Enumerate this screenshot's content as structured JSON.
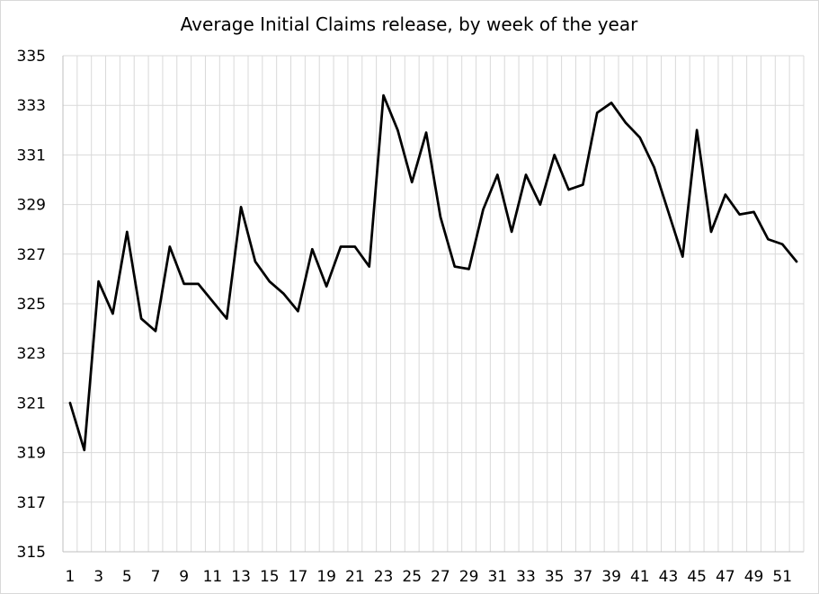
{
  "chart_data": {
    "type": "line",
    "title": "Average Initial Claims release, by week of the year",
    "xlabel": "",
    "ylabel": "",
    "ylim": [
      315,
      335
    ],
    "yticks": [
      315,
      317,
      319,
      321,
      323,
      325,
      327,
      329,
      331,
      333,
      335
    ],
    "x": [
      1,
      2,
      3,
      4,
      5,
      6,
      7,
      8,
      9,
      10,
      11,
      12,
      13,
      14,
      15,
      16,
      17,
      18,
      19,
      20,
      21,
      22,
      23,
      24,
      25,
      26,
      27,
      28,
      29,
      30,
      31,
      32,
      33,
      34,
      35,
      36,
      37,
      38,
      39,
      40,
      41,
      42,
      43,
      44,
      45,
      46,
      47,
      48,
      49,
      50,
      51,
      52
    ],
    "xtick_labels": [
      "1",
      "3",
      "5",
      "7",
      "9",
      "11",
      "13",
      "15",
      "17",
      "19",
      "21",
      "23",
      "25",
      "27",
      "29",
      "31",
      "33",
      "35",
      "37",
      "39",
      "41",
      "43",
      "45",
      "47",
      "49",
      "51"
    ],
    "grid": true,
    "legend": "none",
    "line_color": "#000000",
    "series": [
      {
        "values": [
          321.0,
          319.1,
          325.9,
          324.6,
          327.9,
          324.4,
          323.9,
          327.3,
          325.8,
          325.8,
          325.1,
          324.4,
          328.9,
          326.7,
          325.9,
          325.4,
          324.7,
          327.2,
          325.7,
          327.3,
          327.3,
          326.5,
          333.4,
          332.0,
          329.9,
          331.9,
          328.5,
          326.5,
          326.4,
          328.8,
          330.2,
          327.9,
          330.2,
          329.0,
          331.0,
          329.6,
          329.8,
          332.7,
          333.1,
          332.3,
          331.7,
          330.5,
          328.7,
          326.9,
          332.0,
          327.9,
          329.4,
          328.6,
          328.7,
          327.6,
          327.4,
          326.7
        ]
      }
    ]
  }
}
